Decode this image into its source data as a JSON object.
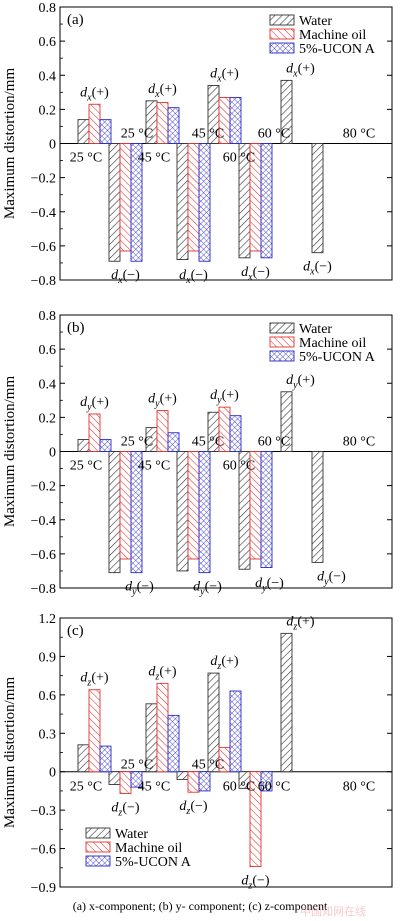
{
  "caption": "(a)  x-component;  (b)  y- component; (c) z-component",
  "watermark": "中国知网在线",
  "colors": {
    "water": "#333333",
    "oil": "#e53030",
    "ucon": "#2a2ac8"
  },
  "chart_data": [
    {
      "type": "bar",
      "panel_label": "(a)",
      "ylabel": "Maximum distortion/mm",
      "ylim": [
        -0.8,
        0.8
      ],
      "yticks": [
        -0.8,
        -0.6,
        -0.4,
        -0.2,
        0,
        0.2,
        0.4,
        0.6,
        0.8
      ],
      "legend_position": "top-right",
      "categories": [
        "25 °C",
        "45 °C",
        "60 °C",
        "80 °C"
      ],
      "series": [
        {
          "name": "Water",
          "positive": [
            0.14,
            0.25,
            0.34,
            0.37
          ],
          "negative": [
            -0.69,
            -0.68,
            -0.67,
            -0.64
          ]
        },
        {
          "name": "Machine oil",
          "positive": [
            0.23,
            0.24,
            0.27,
            null
          ],
          "negative": [
            -0.63,
            -0.63,
            -0.63,
            null
          ]
        },
        {
          "name": "5%-UCON A",
          "positive": [
            0.14,
            0.21,
            0.27,
            null
          ],
          "negative": [
            -0.69,
            -0.69,
            -0.67,
            null
          ]
        }
      ],
      "pos_label": "dx(+)",
      "neg_label": "dx(−)"
    },
    {
      "type": "bar",
      "panel_label": "(b)",
      "ylabel": "Maximum distortion/mm",
      "ylim": [
        -0.8,
        0.8
      ],
      "yticks": [
        -0.8,
        -0.6,
        -0.4,
        -0.2,
        0,
        0.2,
        0.4,
        0.6,
        0.8
      ],
      "legend_position": "top-right",
      "categories": [
        "25 °C",
        "45 °C",
        "60 °C",
        "80 °C"
      ],
      "series": [
        {
          "name": "Water",
          "positive": [
            0.07,
            0.14,
            0.23,
            0.35
          ],
          "negative": [
            -0.71,
            -0.7,
            -0.69,
            -0.65
          ]
        },
        {
          "name": "Machine oil",
          "positive": [
            0.22,
            0.24,
            0.26,
            null
          ],
          "negative": [
            -0.63,
            -0.63,
            -0.63,
            null
          ]
        },
        {
          "name": "5%-UCON A",
          "positive": [
            0.07,
            0.11,
            0.21,
            null
          ],
          "negative": [
            -0.71,
            -0.71,
            -0.68,
            null
          ]
        }
      ],
      "pos_label": "dy(+)",
      "neg_label": "dy(−)"
    },
    {
      "type": "bar",
      "panel_label": "(c)",
      "ylabel": "Maximum distortion/mm",
      "ylim": [
        -0.9,
        1.2
      ],
      "yticks": [
        -0.9,
        -0.6,
        -0.3,
        0,
        0.3,
        0.6,
        0.9,
        1.2
      ],
      "legend_position": "bottom-left",
      "categories": [
        "25 °C",
        "45 °C",
        "60 °C",
        "80 °C"
      ],
      "series": [
        {
          "name": "Water",
          "positive": [
            0.21,
            0.53,
            0.77,
            1.08
          ],
          "negative": [
            -0.1,
            -0.06,
            -0.13,
            null
          ]
        },
        {
          "name": "Machine oil",
          "positive": [
            0.64,
            0.69,
            0.19,
            null
          ],
          "negative": [
            -0.17,
            -0.16,
            -0.74,
            null
          ]
        },
        {
          "name": "5%-UCON A",
          "positive": [
            0.2,
            0.44,
            0.63,
            null
          ],
          "negative": [
            -0.12,
            -0.15,
            -0.15,
            null
          ]
        }
      ],
      "pos_label": "dz(+)",
      "neg_label": "dz(−)"
    }
  ]
}
